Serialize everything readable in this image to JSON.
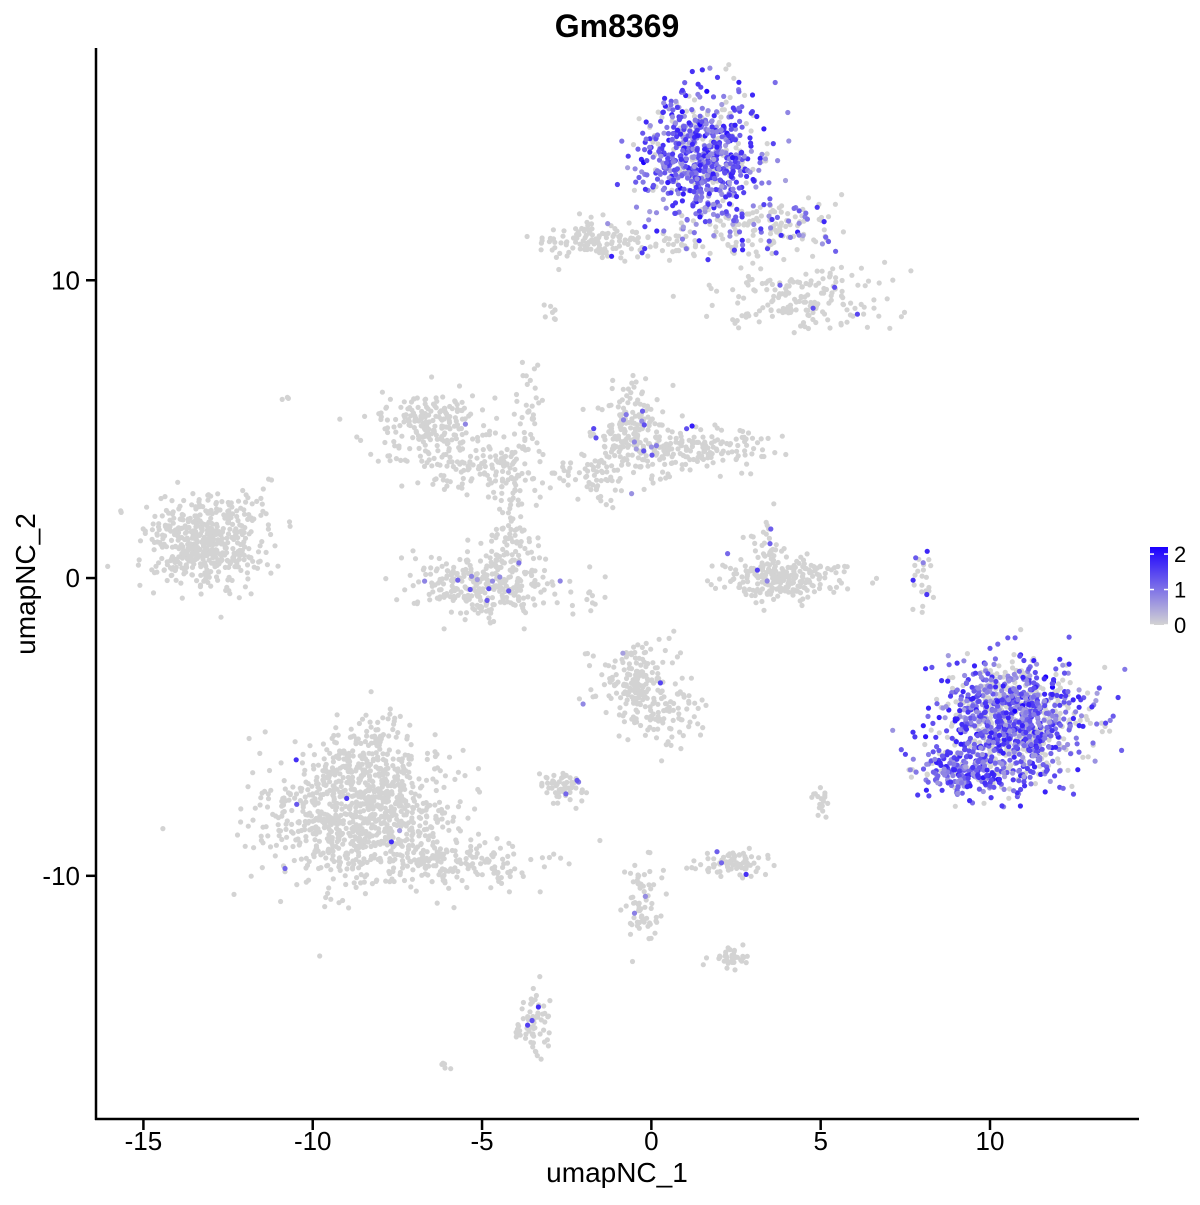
{
  "chart_data": {
    "type": "scatter",
    "title": "Gm8369",
    "xlabel": "umapNC_1",
    "ylabel": "umapNC_2",
    "xlim": [
      -16.4,
      14.4
    ],
    "ylim": [
      -18.2,
      17.8
    ],
    "xticks": [
      -15,
      -10,
      -5,
      0,
      5,
      10
    ],
    "yticks": [
      -10,
      0,
      10
    ],
    "xtick_labels": [
      "-15",
      "-10",
      "-5",
      "0",
      "5",
      "10"
    ],
    "ytick_labels": [
      "-10",
      "0",
      "10"
    ],
    "grid": false,
    "legend": {
      "placement": "right",
      "type": "colorbar",
      "min": 0,
      "max": 2.2,
      "ticks": [
        0,
        1,
        2
      ],
      "tick_labels": [
        "0",
        "1",
        "2"
      ],
      "color_low": "#d3d3d3",
      "color_high": "#1b00ff"
    },
    "point_color_low": "#d3d3d3",
    "point_color_high": "#1b00ff",
    "clusters": [
      {
        "cx": -13.2,
        "cy": 1.2,
        "sx": 0.8,
        "sy": 0.75,
        "n": 520,
        "expr": 0
      },
      {
        "cx": -6.6,
        "cy": 5.2,
        "sx": 0.8,
        "sy": 0.5,
        "n": 200,
        "expr": 0.01
      },
      {
        "cx": -5.0,
        "cy": 3.8,
        "sx": 1.2,
        "sy": 0.5,
        "n": 140,
        "expr": 0
      },
      {
        "cx": -4.2,
        "cy": 1.8,
        "sx": 0.3,
        "sy": 1.0,
        "n": 80,
        "expr": 0
      },
      {
        "cx": -5.0,
        "cy": -0.2,
        "sx": 1.0,
        "sy": 0.55,
        "n": 300,
        "expr": 0.04
      },
      {
        "cx": -3.6,
        "cy": 5.5,
        "sx": 0.2,
        "sy": 1.2,
        "n": 40,
        "expr": 0
      },
      {
        "cx": -0.6,
        "cy": 5.0,
        "sx": 0.5,
        "sy": 0.8,
        "n": 190,
        "expr": 0.05
      },
      {
        "cx": 1.4,
        "cy": 4.3,
        "sx": 1.1,
        "sy": 0.4,
        "n": 170,
        "expr": 0.03
      },
      {
        "cx": -1.7,
        "cy": 3.4,
        "sx": 0.6,
        "sy": 0.5,
        "n": 60,
        "expr": 0.03
      },
      {
        "cx": 3.9,
        "cy": 0.0,
        "sx": 0.9,
        "sy": 0.35,
        "n": 220,
        "expr": 0.02
      },
      {
        "cx": 3.4,
        "cy": 0.9,
        "sx": 0.3,
        "sy": 0.6,
        "n": 50,
        "expr": 0.05
      },
      {
        "cx": 1.5,
        "cy": 14.1,
        "sx": 0.9,
        "sy": 1.05,
        "n": 720,
        "expr": 0.78
      },
      {
        "cx": 3.5,
        "cy": 11.8,
        "sx": 1.0,
        "sy": 0.5,
        "n": 140,
        "expr": 0.35
      },
      {
        "cx": 4.4,
        "cy": 9.4,
        "sx": 1.2,
        "sy": 0.6,
        "n": 180,
        "expr": 0.02
      },
      {
        "cx": -1.8,
        "cy": 11.4,
        "sx": 0.8,
        "sy": 0.35,
        "n": 110,
        "expr": 0.03
      },
      {
        "cx": 0.8,
        "cy": 11.2,
        "sx": 1.2,
        "sy": 0.3,
        "n": 70,
        "expr": 0.15
      },
      {
        "cx": 10.7,
        "cy": -4.8,
        "sx": 1.0,
        "sy": 1.0,
        "n": 1100,
        "expr": 0.65
      },
      {
        "cx": 9.2,
        "cy": -6.5,
        "sx": 0.7,
        "sy": 0.45,
        "n": 220,
        "expr": 0.8
      },
      {
        "cx": 8.0,
        "cy": 0.0,
        "sx": 0.15,
        "sy": 0.6,
        "n": 25,
        "expr": 0.25
      },
      {
        "cx": -0.5,
        "cy": -3.6,
        "sx": 0.55,
        "sy": 0.65,
        "n": 200,
        "expr": 0.02
      },
      {
        "cx": 0.7,
        "cy": -4.6,
        "sx": 0.5,
        "sy": 0.5,
        "n": 60,
        "expr": 0.02
      },
      {
        "cx": -2.6,
        "cy": -7.0,
        "sx": 0.3,
        "sy": 0.22,
        "n": 60,
        "expr": 0.05
      },
      {
        "cx": 2.4,
        "cy": -9.6,
        "sx": 0.45,
        "sy": 0.22,
        "n": 80,
        "expr": 0.05
      },
      {
        "cx": 5.0,
        "cy": -7.5,
        "sx": 0.2,
        "sy": 0.25,
        "n": 18,
        "expr": 0
      },
      {
        "cx": -8.6,
        "cy": -8.0,
        "sx": 1.3,
        "sy": 1.1,
        "n": 900,
        "expr": 0.01
      },
      {
        "cx": -8.2,
        "cy": -6.0,
        "sx": 0.6,
        "sy": 0.7,
        "n": 120,
        "expr": 0
      },
      {
        "cx": -5.9,
        "cy": -9.5,
        "sx": 1.5,
        "sy": 0.4,
        "n": 160,
        "expr": 0
      },
      {
        "cx": -0.3,
        "cy": -10.9,
        "sx": 0.25,
        "sy": 0.8,
        "n": 70,
        "expr": 0.03
      },
      {
        "cx": 2.3,
        "cy": -12.7,
        "sx": 0.3,
        "sy": 0.2,
        "n": 35,
        "expr": 0
      },
      {
        "cx": -3.5,
        "cy": -14.9,
        "sx": 0.25,
        "sy": 0.55,
        "n": 70,
        "expr": 0.04
      },
      {
        "cx": -6.1,
        "cy": -16.4,
        "sx": 0.1,
        "sy": 0.1,
        "n": 5,
        "expr": 0
      },
      {
        "cx": -3.0,
        "cy": 8.9,
        "sx": 0.12,
        "sy": 0.18,
        "n": 8,
        "expr": 0
      },
      {
        "cx": -10.8,
        "cy": 6.1,
        "sx": 0.08,
        "sy": 0.08,
        "n": 3,
        "expr": 0
      },
      {
        "cx": -12.0,
        "cy": 2.3,
        "sx": 0.25,
        "sy": 0.35,
        "n": 12,
        "expr": 0
      },
      {
        "cx": -2.0,
        "cy": -0.7,
        "sx": 0.5,
        "sy": 0.4,
        "n": 15,
        "expr": 0
      }
    ]
  }
}
